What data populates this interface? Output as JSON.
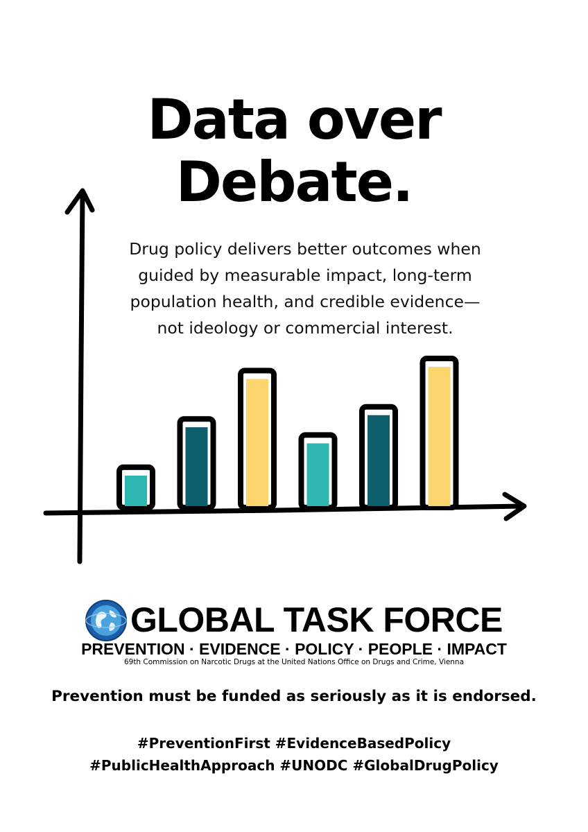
{
  "headline": {
    "line1": "Data over",
    "line2": "Debate."
  },
  "body": {
    "line1": "Drug policy delivers better outcomes when",
    "line2": "guided by measurable impact, long-term",
    "line3": "population health, and credible evidence—",
    "line4": "not ideology or commercial interest."
  },
  "chart_data": {
    "type": "bar",
    "categories": [
      "",
      "",
      "",
      "",
      "",
      ""
    ],
    "values": [
      1.0,
      2.2,
      3.4,
      1.8,
      2.5,
      3.7
    ],
    "colors": [
      "#2db7b0",
      "#0e5f6e",
      "#fbd56e",
      "#2db7b0",
      "#0e5f6e",
      "#fbd56e"
    ],
    "ylim": [
      0,
      4.2
    ],
    "grid": false,
    "axis_color": "#000000"
  },
  "logo": {
    "name": "GLOBAL TASK FORCE",
    "globe_icon": "globe-icon"
  },
  "tagline": "PREVENTION · EVIDENCE · POLICY · PEOPLE · IMPACT",
  "subtagline": "69th Commission on Narcotic Drugs at the United Nations Office on Drugs and Crime, Vienna",
  "statement": "Prevention must be funded as seriously as it is endorsed.",
  "hashtags": {
    "line1": "#PreventionFirst #EvidenceBasedPolicy",
    "line2": "#PublicHealthApproach #UNODC #GlobalDrugPolicy"
  }
}
